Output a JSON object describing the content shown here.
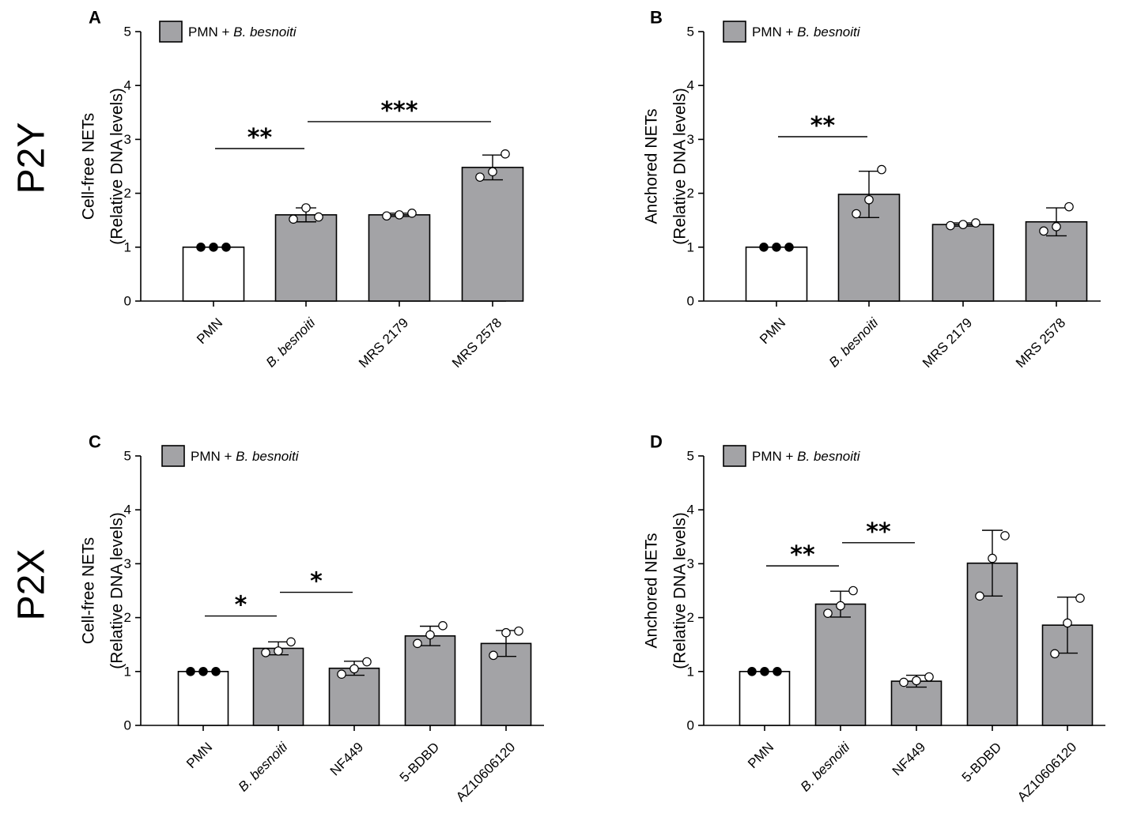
{
  "row_labels": [
    "P2Y",
    "P2X"
  ],
  "legend_label": "PMN + B. besnoiti",
  "legend_prefix": "PMN + ",
  "legend_italic": "B. besnoiti",
  "colors": {
    "control": "#ffffff",
    "treated": "#a3a3a6",
    "stroke": "#000000"
  },
  "chart_data": [
    {
      "panel": "A",
      "type": "bar",
      "ylabel_line1": "Cell-free NETs",
      "ylabel_line2": "(Relative DNA levels)",
      "ylim": [
        0,
        5
      ],
      "yticks": [
        0,
        1,
        2,
        3,
        4,
        5
      ],
      "categories": [
        "PMN",
        "B. besnoiti",
        "MRS 2179",
        "MRS 2578"
      ],
      "italic_categories": [
        "B. besnoiti"
      ],
      "values": [
        1.0,
        1.6,
        1.6,
        2.48
      ],
      "errors": [
        0,
        0.13,
        0.03,
        0.23
      ],
      "points": [
        [
          1.0,
          1.0,
          1.0
        ],
        [
          1.52,
          1.73,
          1.56
        ],
        [
          1.58,
          1.6,
          1.63
        ],
        [
          2.3,
          2.4,
          2.73
        ]
      ],
      "significance": [
        {
          "from": 0,
          "to": 1,
          "label": "**",
          "y": 2.83
        },
        {
          "from": 1,
          "to": 3,
          "label": "***",
          "y": 3.33
        }
      ]
    },
    {
      "panel": "B",
      "type": "bar",
      "ylabel_line1": "Anchored NETs",
      "ylabel_line2": "(Relative DNA levels)",
      "ylim": [
        0,
        5
      ],
      "yticks": [
        0,
        1,
        2,
        3,
        4,
        5
      ],
      "categories": [
        "PMN",
        "B. besnoiti",
        "MRS 2179",
        "MRS 2578"
      ],
      "italic_categories": [
        "B. besnoiti"
      ],
      "values": [
        1.0,
        1.98,
        1.42,
        1.47
      ],
      "errors": [
        0,
        0.43,
        0.03,
        0.26
      ],
      "points": [
        [
          1.0,
          1.0,
          1.0
        ],
        [
          1.62,
          1.88,
          2.44
        ],
        [
          1.4,
          1.42,
          1.45
        ],
        [
          1.3,
          1.38,
          1.75
        ]
      ],
      "significance": [
        {
          "from": 0,
          "to": 1,
          "label": "**",
          "y": 3.05
        }
      ]
    },
    {
      "panel": "C",
      "type": "bar",
      "ylabel_line1": "Cell-free NETs",
      "ylabel_line2": "(Relative DNA levels)",
      "ylim": [
        0,
        5
      ],
      "yticks": [
        0,
        1,
        2,
        3,
        4,
        5
      ],
      "categories": [
        "PMN",
        "B. besnoiti",
        "NF449",
        "5-BDBD",
        "AZ10606120"
      ],
      "italic_categories": [
        "B. besnoiti"
      ],
      "values": [
        1.0,
        1.43,
        1.06,
        1.66,
        1.52
      ],
      "errors": [
        0,
        0.12,
        0.13,
        0.18,
        0.24
      ],
      "points": [
        [
          1.0,
          1.0,
          1.0
        ],
        [
          1.35,
          1.38,
          1.55
        ],
        [
          0.95,
          1.05,
          1.18
        ],
        [
          1.52,
          1.68,
          1.85
        ],
        [
          1.3,
          1.72,
          1.75
        ]
      ],
      "significance": [
        {
          "from": 0,
          "to": 1,
          "label": "*",
          "y": 2.03
        },
        {
          "from": 1,
          "to": 2,
          "label": "*",
          "y": 2.47
        }
      ]
    },
    {
      "panel": "D",
      "type": "bar",
      "ylabel_line1": "Anchored NETs",
      "ylabel_line2": "(Relative DNA levels)",
      "ylim": [
        0,
        5
      ],
      "yticks": [
        0,
        1,
        2,
        3,
        4,
        5
      ],
      "categories": [
        "PMN",
        "B. besnoiti",
        "NF449",
        "5-BDBD",
        "AZ10606120"
      ],
      "italic_categories": [
        "B. besnoiti"
      ],
      "values": [
        1.0,
        2.25,
        0.82,
        3.01,
        1.86
      ],
      "errors": [
        0,
        0.24,
        0.11,
        0.61,
        0.52
      ],
      "points": [
        [
          1.0,
          1.0,
          1.0
        ],
        [
          2.08,
          2.22,
          2.5
        ],
        [
          0.8,
          0.83,
          0.9
        ],
        [
          2.4,
          3.1,
          3.52
        ],
        [
          1.33,
          1.9,
          2.36
        ]
      ],
      "significance": [
        {
          "from": 0,
          "to": 1,
          "label": "**",
          "y": 2.96
        },
        {
          "from": 1,
          "to": 2,
          "label": "**",
          "y": 3.39
        }
      ]
    }
  ]
}
